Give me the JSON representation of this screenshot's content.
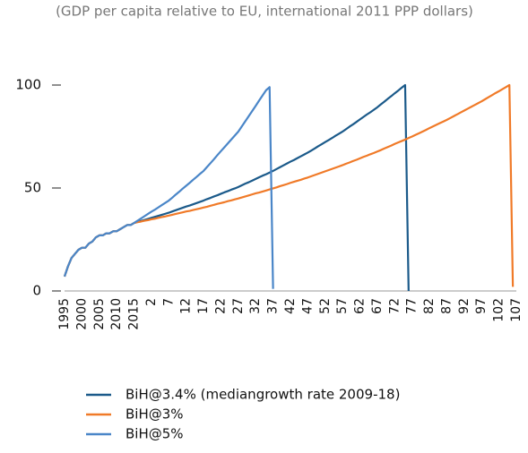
{
  "chart_data": {
    "type": "line",
    "subtitle": "(GDP per capita relative to EU, international 2011 PPP dollars)",
    "categories": [
      "1995",
      null,
      null,
      null,
      null,
      "2000",
      null,
      null,
      null,
      null,
      "2005",
      null,
      null,
      null,
      null,
      "2010",
      null,
      null,
      null,
      null,
      "2015",
      null,
      null,
      null,
      null,
      "2",
      null,
      null,
      null,
      null,
      "7",
      null,
      null,
      null,
      null,
      "12",
      null,
      null,
      null,
      null,
      "17",
      null,
      null,
      null,
      null,
      "22",
      null,
      null,
      null,
      null,
      "27",
      null,
      null,
      null,
      null,
      "32",
      null,
      null,
      null,
      null,
      "37",
      null,
      null,
      null,
      null,
      "42",
      null,
      null,
      null,
      null,
      "47",
      null,
      null,
      null,
      null,
      "52",
      null,
      null,
      null,
      null,
      "57",
      null,
      null,
      null,
      null,
      "62",
      null,
      null,
      null,
      null,
      "67",
      null,
      null,
      null,
      null,
      "72",
      null,
      null,
      null,
      null,
      "77",
      null,
      null,
      null,
      null,
      "82",
      null,
      null,
      null,
      null,
      "87",
      null,
      null,
      null,
      null,
      "92",
      null,
      null,
      null,
      null,
      "97",
      null,
      null,
      null,
      null,
      "102",
      null,
      null,
      null,
      null,
      "107"
    ],
    "series": [
      {
        "name": "BiH@3.4% (mediangrowth rate 2009-18)",
        "color": "#1b5a8a",
        "values": [
          7,
          12,
          16,
          18,
          20,
          21,
          21,
          23,
          24,
          26,
          27,
          27,
          28,
          28,
          29,
          29,
          30,
          31,
          32,
          32,
          33,
          33.5,
          34,
          34.5,
          35,
          35.5,
          36,
          36.5,
          37,
          37.5,
          38,
          38.6,
          39.2,
          39.8,
          40.4,
          41,
          41.5,
          42.1,
          42.7,
          43.3,
          43.9,
          44.6,
          45.2,
          45.9,
          46.5,
          47.2,
          47.9,
          48.5,
          49.2,
          49.8,
          50.5,
          51.3,
          52.1,
          52.8,
          53.6,
          54.4,
          55.2,
          56,
          56.7,
          57.5,
          58.3,
          59.2,
          60.1,
          61,
          61.9,
          62.8,
          63.6,
          64.5,
          65.4,
          66.3,
          67.2,
          68.2,
          69.2,
          70.3,
          71.3,
          72.3,
          73.3,
          74.3,
          75.4,
          76.4,
          77.4,
          78.6,
          79.8,
          80.9,
          82.1,
          83.3,
          84.5,
          85.7,
          86.8,
          88,
          89.2,
          90.6,
          91.9,
          93.3,
          94.6,
          96,
          97.3,
          98.7,
          100,
          0,
          null,
          null,
          null,
          null,
          null,
          null,
          null,
          null,
          null,
          null,
          null,
          null,
          null,
          null,
          null,
          null,
          null,
          null,
          null,
          null,
          null,
          null,
          null,
          null,
          null,
          null,
          null,
          null,
          null,
          null,
          null
        ]
      },
      {
        "name": "BiH@3%",
        "color": "#f07a28",
        "values": [
          7,
          12,
          16,
          18,
          20,
          21,
          21,
          23,
          24,
          26,
          27,
          27,
          28,
          28,
          29,
          29,
          30,
          31,
          32,
          32,
          33,
          33.4,
          33.7,
          34.1,
          34.4,
          34.8,
          35.1,
          35.5,
          35.9,
          36.2,
          36.6,
          37,
          37.4,
          37.8,
          38.2,
          38.6,
          38.9,
          39.3,
          39.7,
          40.1,
          40.5,
          40.9,
          41.4,
          41.8,
          42.3,
          42.7,
          43.1,
          43.6,
          44,
          44.5,
          44.9,
          45.4,
          45.9,
          46.4,
          46.9,
          47.4,
          47.8,
          48.3,
          48.8,
          49.3,
          49.8,
          50.3,
          50.9,
          51.4,
          51.9,
          52.5,
          53,
          53.5,
          54,
          54.6,
          55.1,
          55.7,
          56.3,
          56.9,
          57.5,
          58.1,
          58.7,
          59.3,
          59.9,
          60.5,
          61.1,
          61.8,
          62.4,
          63.1,
          63.7,
          64.4,
          65.1,
          65.7,
          66.4,
          67,
          67.7,
          68.4,
          69.2,
          69.9,
          70.6,
          71.4,
          72.1,
          72.8,
          73.5,
          74.3,
          75,
          75.8,
          76.6,
          77.4,
          78.2,
          79.1,
          79.9,
          80.7,
          81.5,
          82.3,
          83.1,
          84,
          84.9,
          85.8,
          86.7,
          87.6,
          88.5,
          89.4,
          90.3,
          91.2,
          92.1,
          93.1,
          94.1,
          95.1,
          96.1,
          97,
          98,
          99,
          100,
          2,
          null
        ]
      },
      {
        "name": "BiH@5%",
        "color": "#4a86c8",
        "values": [
          7,
          12,
          16,
          18,
          20,
          21,
          21,
          23,
          24,
          26,
          27,
          27,
          28,
          28,
          29,
          29,
          30,
          31,
          32,
          32,
          33,
          34.1,
          35.2,
          36.3,
          37.4,
          38.5,
          39.5,
          40.6,
          41.7,
          42.8,
          43.9,
          45.3,
          46.8,
          48.2,
          49.7,
          51.1,
          52.5,
          54,
          55.4,
          56.9,
          58.3,
          60.2,
          62.1,
          64,
          66,
          67.9,
          69.8,
          71.7,
          73.6,
          75.5,
          77.4,
          79.9,
          82.4,
          84.9,
          87.4,
          89.9,
          92.5,
          95,
          97.5,
          99,
          1,
          null,
          null,
          null,
          null,
          null,
          null,
          null,
          null,
          null,
          null,
          null,
          null,
          null,
          null,
          null,
          null,
          null,
          null,
          null,
          null,
          null,
          null,
          null,
          null,
          null,
          null,
          null,
          null,
          null,
          null,
          null,
          null,
          null,
          null,
          null,
          null,
          null,
          null,
          null,
          null,
          null,
          null,
          null,
          null,
          null,
          null,
          null,
          null,
          null,
          null,
          null,
          null,
          null,
          null,
          null,
          null,
          null,
          null,
          null,
          null,
          null,
          null,
          null,
          null,
          null,
          null,
          null,
          null,
          null,
          null
        ]
      }
    ],
    "ylim": [
      0,
      100
    ],
    "yticks": [
      0,
      50,
      100
    ]
  }
}
